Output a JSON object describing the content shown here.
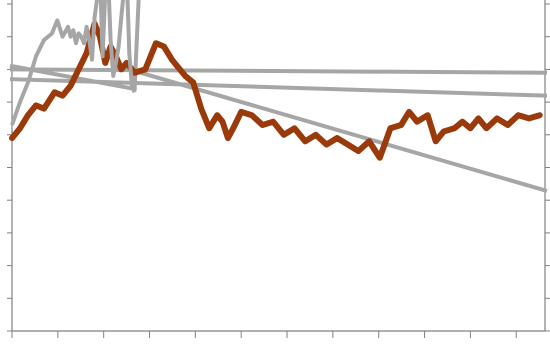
{
  "chart_data": {
    "type": "line",
    "title": "",
    "xlabel": "",
    "ylabel": "",
    "grid": false,
    "legend": "none",
    "colors": {
      "main": "#9a3a0a",
      "overlay": "#a6a6a6",
      "axis": "#808080"
    },
    "xlim": [
      0,
      100
    ],
    "ylim": [
      0,
      100
    ],
    "x_ticks": [
      0,
      8.6,
      17.2,
      25.8,
      34.4,
      43,
      51.6,
      60.2,
      68.8,
      77.4,
      86,
      94.6
    ],
    "y_ticks": [
      0,
      10,
      20,
      30,
      40,
      50,
      60,
      70,
      80,
      90,
      100
    ],
    "series": [
      {
        "style": "thick-dark-orange",
        "x": [
          0,
          1.5,
          3,
          4.5,
          6,
          8,
          9.5,
          11,
          12.5,
          14,
          15.5,
          16.5,
          17.5,
          18.5,
          19.5,
          20.5,
          21.5,
          23,
          25,
          27,
          28.5,
          30,
          31,
          32.5,
          34,
          35.5,
          37,
          38.5,
          39.5,
          40.5,
          41.5,
          43,
          45,
          47,
          49,
          51,
          53,
          55,
          57,
          59,
          61,
          63,
          65,
          67,
          69,
          71,
          73,
          74.5,
          76,
          78,
          79.5,
          81,
          83,
          84.5,
          86,
          87.5,
          89,
          91,
          93,
          95,
          97,
          99
        ],
        "y": [
          59,
          62,
          66,
          69,
          68,
          73,
          72,
          75,
          80,
          85,
          94,
          90,
          82,
          87,
          84,
          80,
          82,
          79,
          80,
          88,
          87,
          83,
          81,
          78,
          76,
          68,
          62,
          66,
          64,
          59,
          62,
          67,
          66,
          63,
          64,
          60,
          62,
          58,
          60,
          57,
          59,
          57,
          55,
          58,
          53,
          62,
          63,
          67,
          64,
          66,
          58,
          61,
          62,
          64,
          62,
          65,
          62,
          65,
          63,
          66,
          65,
          66
        ]
      },
      {
        "style": "gray-spiky",
        "x": [
          0,
          1.5,
          3,
          4.5,
          6,
          7.5,
          8.5,
          9.5,
          10.5,
          11,
          11.5,
          12,
          12.5,
          13,
          13.5,
          14,
          14.5,
          15,
          15.5,
          16,
          16.5,
          17,
          17.5,
          18,
          18.5,
          19,
          19.5,
          20,
          20.5,
          21,
          21.5,
          22,
          22.5,
          23
        ],
        "y": [
          63,
          70,
          76,
          84,
          89,
          91,
          95,
          90,
          93,
          90,
          92,
          88,
          91,
          90,
          88,
          93,
          89,
          83,
          96,
          102,
          110,
          84,
          104,
          110,
          89,
          78,
          82,
          87,
          96,
          104,
          110,
          85,
          75,
          73
        ]
      },
      {
        "style": "gray-straight",
        "segments": [
          {
            "x": [
              0,
              23
            ],
            "y": [
              81,
              74
            ]
          },
          {
            "x": [
              23,
              24
            ],
            "y": [
              74,
              110
            ]
          },
          {
            "x": [
              0,
              100
            ],
            "y": [
              80,
              79
            ]
          },
          {
            "x": [
              0,
              100
            ],
            "y": [
              77,
              72
            ]
          },
          {
            "x": [
              22,
              100
            ],
            "y": [
              80,
              43
            ]
          }
        ]
      }
    ]
  }
}
